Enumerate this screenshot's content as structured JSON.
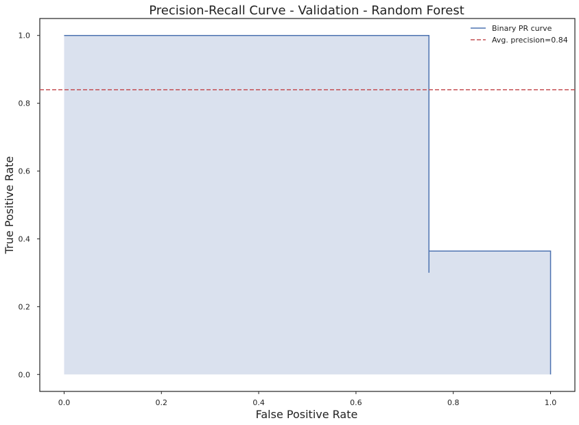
{
  "chart_data": {
    "type": "line",
    "title": "Precision-Recall Curve - Validation - Random Forest",
    "xlabel": "False Positive Rate",
    "ylabel": "True Positive Rate",
    "xlim": [
      -0.05,
      1.05
    ],
    "ylim": [
      -0.05,
      1.05
    ],
    "x_ticks": [
      0.0,
      0.2,
      0.4,
      0.6,
      0.8,
      1.0
    ],
    "y_ticks": [
      0.0,
      0.2,
      0.4,
      0.6,
      0.8,
      1.0
    ],
    "x_tick_labels": [
      "0.0",
      "0.2",
      "0.4",
      "0.6",
      "0.8",
      "1.0"
    ],
    "y_tick_labels": [
      "0.0",
      "0.2",
      "0.4",
      "0.6",
      "0.8",
      "1.0"
    ],
    "grid": false,
    "legend_position": "top-right",
    "series": [
      {
        "name": "Binary PR curve",
        "style": "step-solid",
        "color": "#4c72b0",
        "fill_color": "#dae1ee",
        "x": [
          0.0,
          0.75,
          0.75,
          0.75,
          1.0,
          1.0
        ],
        "y": [
          1.0,
          1.0,
          0.3,
          0.364,
          0.364,
          0.0
        ]
      }
    ],
    "reference_lines": [
      {
        "name": "Avg. precision=0.84",
        "orientation": "horizontal",
        "value": 0.84,
        "style": "dashed",
        "color": "#c44e52"
      }
    ]
  }
}
